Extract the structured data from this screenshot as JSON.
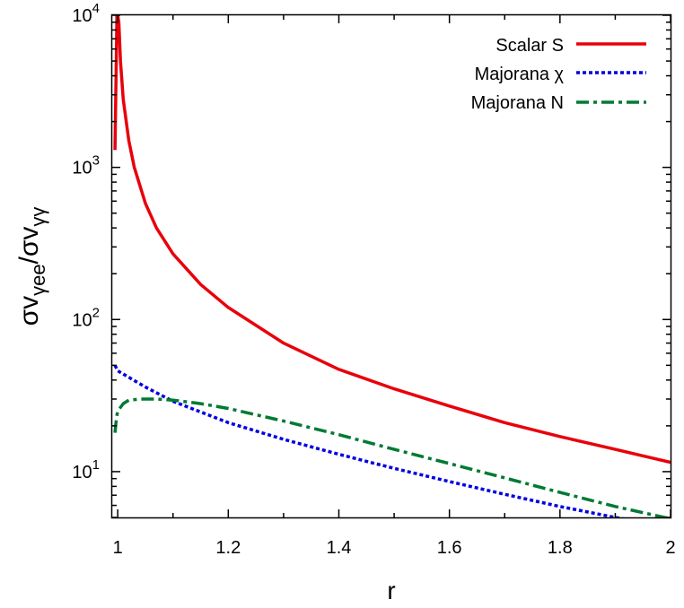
{
  "chart_data": {
    "type": "line",
    "xlabel": "r",
    "ylabel": {
      "base": "σv",
      "numerator_sub": "γee",
      "slash": "/",
      "denominator_sub": "γγ"
    },
    "xlim": [
      0.99,
      2.0
    ],
    "ylim": [
      5,
      10000
    ],
    "yscale": "log",
    "x_ticks": [
      "1",
      "1.2",
      "1.4",
      "1.6",
      "1.8",
      "2"
    ],
    "x_tick_values": [
      1.0,
      1.2,
      1.4,
      1.6,
      1.8,
      2.0
    ],
    "y_ticks": [
      {
        "base": "10",
        "exp": "1",
        "value": 10
      },
      {
        "base": "10",
        "exp": "2",
        "value": 100
      },
      {
        "base": "10",
        "exp": "3",
        "value": 1000
      },
      {
        "base": "10",
        "exp": "4",
        "value": 10000
      }
    ],
    "grid": false,
    "legend_position": "top-right",
    "series": [
      {
        "name": "Scalar S",
        "color": "#e8000b",
        "style": "solid",
        "x": [
          0.995,
          0.996,
          0.997,
          0.998,
          0.9985,
          0.999,
          1.0,
          1.002,
          1.005,
          1.01,
          1.02,
          1.03,
          1.05,
          1.07,
          1.1,
          1.15,
          1.2,
          1.3,
          1.4,
          1.5,
          1.6,
          1.7,
          1.8,
          1.9,
          2.0
        ],
        "y": [
          1300,
          2300,
          4000,
          7000,
          10000,
          10000,
          10000,
          9000,
          5000,
          2800,
          1500,
          1000,
          580,
          400,
          270,
          170,
          120,
          70,
          47,
          35,
          27,
          21,
          17,
          14,
          11.5
        ]
      },
      {
        "name": "Majorana χ",
        "color": "#0000e0",
        "style": "dotted",
        "x": [
          0.995,
          1.0,
          1.05,
          1.1,
          1.2,
          1.3,
          1.4,
          1.5,
          1.6,
          1.7,
          1.8,
          1.9,
          2.0
        ],
        "y": [
          50,
          46,
          36,
          29,
          21,
          16.3,
          13,
          10.5,
          8.6,
          7.1,
          5.9,
          5.0,
          4.3
        ]
      },
      {
        "name": "Majorana N",
        "color": "#007a33",
        "style": "dash-dot",
        "x": [
          0.995,
          0.998,
          1.0,
          1.01,
          1.02,
          1.04,
          1.07,
          1.1,
          1.15,
          1.2,
          1.3,
          1.4,
          1.5,
          1.6,
          1.7,
          1.8,
          1.9,
          2.0
        ],
        "y": [
          18,
          23,
          25,
          28,
          29.5,
          30,
          30,
          29.5,
          28,
          26,
          21.5,
          17.5,
          14,
          11.3,
          9.1,
          7.3,
          5.9,
          4.9
        ]
      }
    ]
  }
}
